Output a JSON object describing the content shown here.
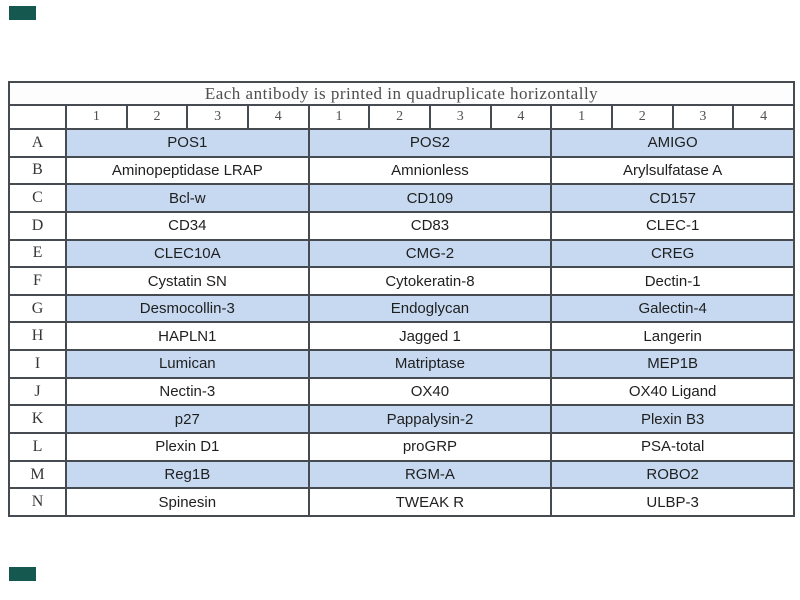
{
  "table": {
    "title": "Each antibody is printed in quadruplicate horizontally",
    "column_numbers": [
      "1",
      "2",
      "3",
      "4",
      "1",
      "2",
      "3",
      "4",
      "1",
      "2",
      "3",
      "4"
    ],
    "rows": [
      {
        "letter": "A",
        "shaded": true,
        "antibodies": [
          "POS1",
          "POS2",
          "AMIGO"
        ]
      },
      {
        "letter": "B",
        "shaded": false,
        "antibodies": [
          "Aminopeptidase LRAP",
          "Amnionless",
          "Arylsulfatase A"
        ]
      },
      {
        "letter": "C",
        "shaded": true,
        "antibodies": [
          "Bcl-w",
          "CD109",
          "CD157"
        ]
      },
      {
        "letter": "D",
        "shaded": false,
        "antibodies": [
          "CD34",
          "CD83",
          "CLEC-1"
        ]
      },
      {
        "letter": "E",
        "shaded": true,
        "antibodies": [
          "CLEC10A",
          "CMG-2",
          "CREG"
        ]
      },
      {
        "letter": "F",
        "shaded": false,
        "antibodies": [
          "Cystatin SN",
          "Cytokeratin-8",
          "Dectin-1"
        ]
      },
      {
        "letter": "G",
        "shaded": true,
        "antibodies": [
          "Desmocollin-3",
          "Endoglycan",
          "Galectin-4"
        ]
      },
      {
        "letter": "H",
        "shaded": false,
        "antibodies": [
          "HAPLN1",
          "Jagged 1",
          "Langerin"
        ]
      },
      {
        "letter": "I",
        "shaded": true,
        "antibodies": [
          "Lumican",
          "Matriptase",
          "MEP1B"
        ]
      },
      {
        "letter": "J",
        "shaded": false,
        "antibodies": [
          "Nectin-3",
          "OX40",
          "OX40 Ligand"
        ]
      },
      {
        "letter": "K",
        "shaded": true,
        "antibodies": [
          "p27",
          "Pappalysin-2",
          "Plexin B3"
        ]
      },
      {
        "letter": "L",
        "shaded": false,
        "antibodies": [
          "Plexin D1",
          "proGRP",
          "PSA-total"
        ]
      },
      {
        "letter": "M",
        "shaded": true,
        "antibodies": [
          "Reg1B",
          "RGM-A",
          "ROBO2"
        ]
      },
      {
        "letter": "N",
        "shaded": false,
        "antibodies": [
          "Spinesin",
          "TWEAK R",
          "ULBP-3"
        ]
      }
    ]
  },
  "colors": {
    "shaded_row_blue": "#c6d9f0",
    "grid_line": "#464b52",
    "corner_mark_teal": "#15584f"
  }
}
